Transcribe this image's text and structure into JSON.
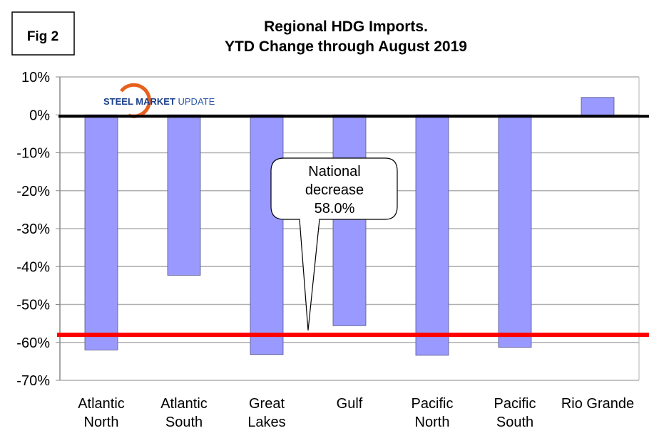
{
  "figure_label": "Fig 2",
  "logo_text": {
    "steel": "STEEL",
    "market": "MARKET",
    "update": "UPDATE"
  },
  "chart_data": {
    "type": "bar",
    "title": [
      "Regional HDG Imports.",
      "YTD Change through August 2019"
    ],
    "categories": [
      [
        "Atlantic",
        "North"
      ],
      [
        "Atlantic",
        "South"
      ],
      [
        "Great",
        "Lakes"
      ],
      [
        "Gulf"
      ],
      [
        "Pacific",
        "North"
      ],
      [
        "Pacific",
        "South"
      ],
      [
        "Rio Grande"
      ]
    ],
    "values": [
      -62.0,
      -42.3,
      -63.2,
      -55.6,
      -63.4,
      -61.3,
      4.6
    ],
    "ylim": [
      -70,
      10
    ],
    "yticks": [
      10,
      0,
      -10,
      -20,
      -30,
      -40,
      -50,
      -60,
      -70
    ],
    "ytick_format": "%",
    "grid": true,
    "xlabel": "",
    "ylabel": "",
    "reference_line": {
      "value": -58.0,
      "color": "#ff0000"
    },
    "annotation": [
      "National",
      "decrease",
      "58.0%"
    ],
    "bar_color": "#9999ff",
    "zero_line_color": "#000000"
  }
}
